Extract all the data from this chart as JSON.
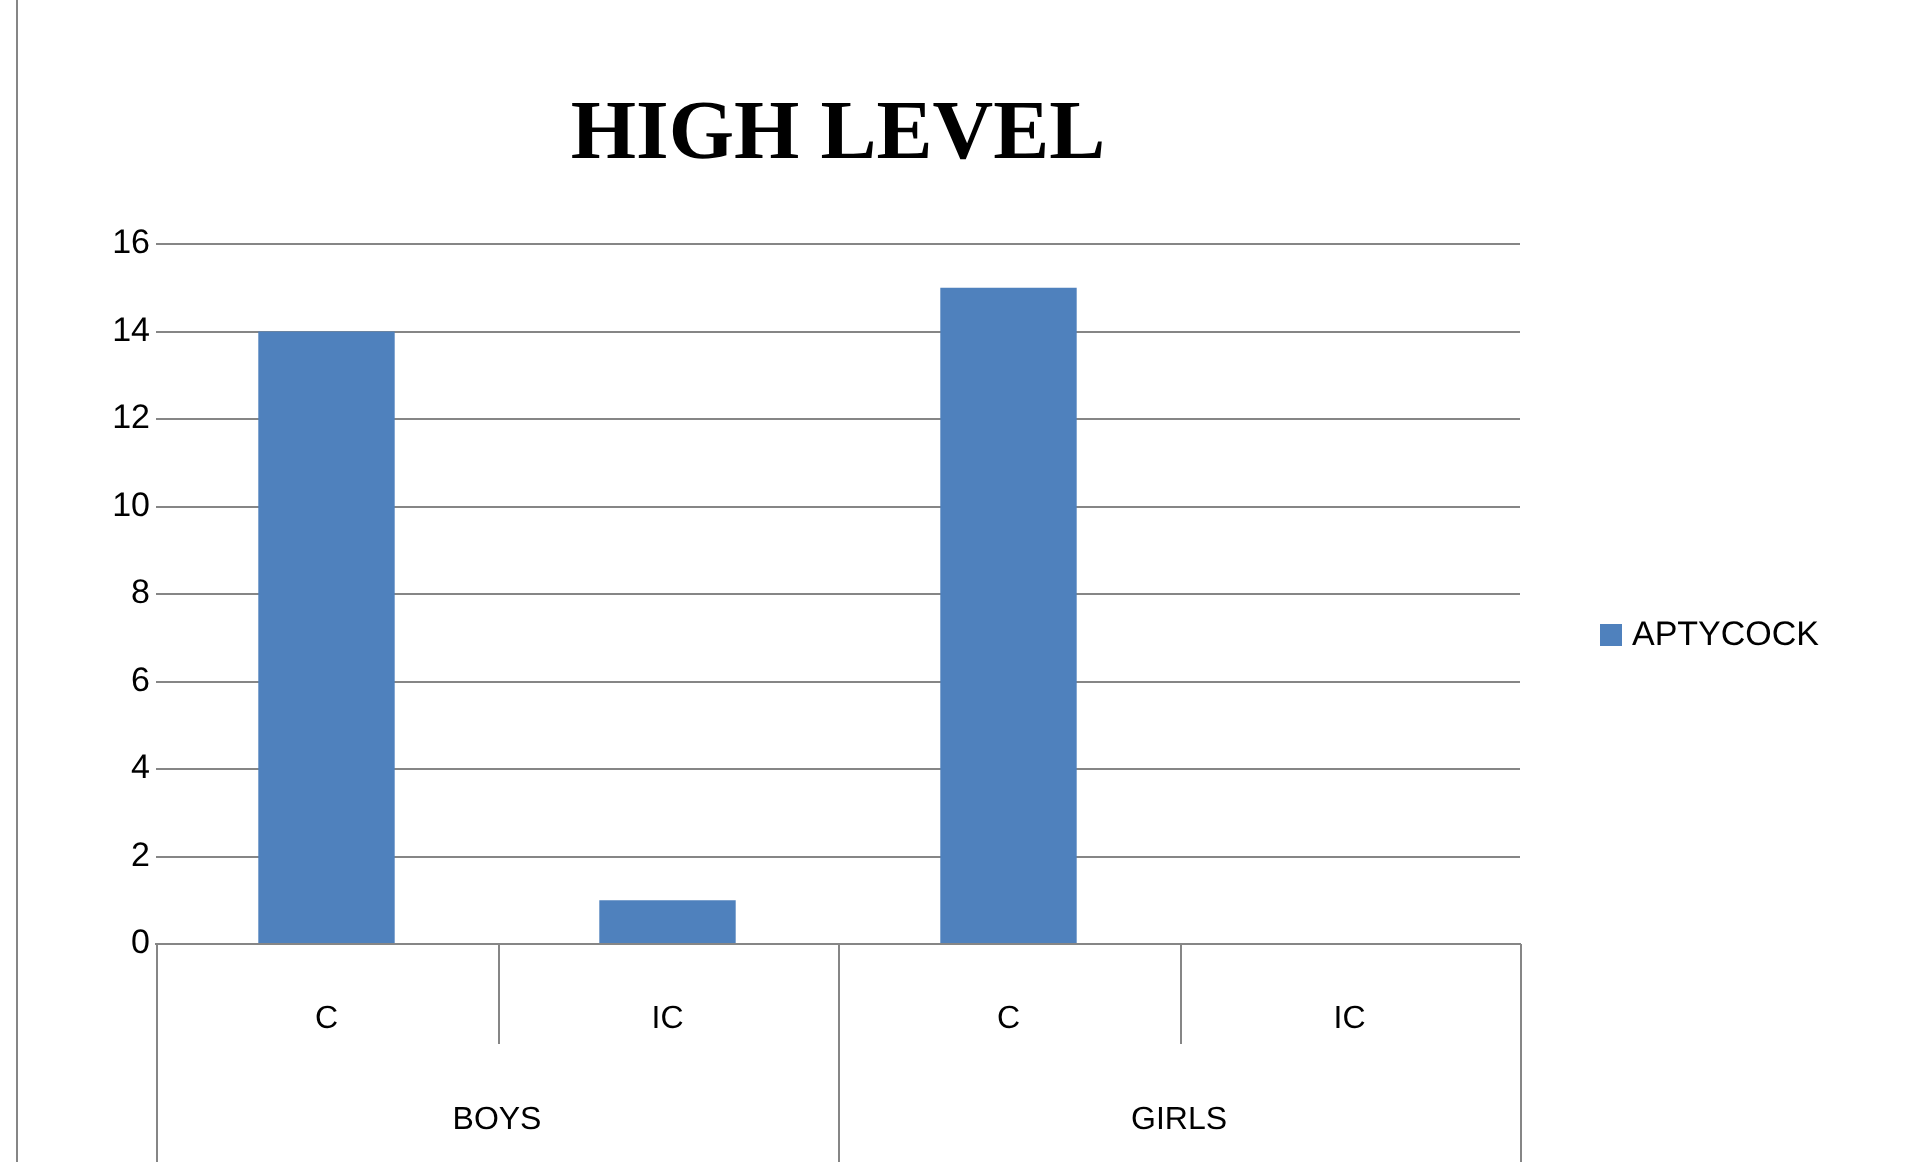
{
  "chart_data": {
    "type": "bar",
    "title": "HIGH LEVEL",
    "categories": [
      "C",
      "IC",
      "C",
      "IC"
    ],
    "series": [
      {
        "name": "APTYCOCK",
        "color": "#4f81bd",
        "values": [
          14,
          1,
          15,
          0
        ]
      }
    ],
    "annotations": [
      "BOYS",
      "GIRLS"
    ],
    "ylim": [
      0,
      16
    ],
    "yticks": [
      0,
      2,
      4,
      6,
      8,
      10,
      12,
      14,
      16
    ],
    "grid": "y",
    "legend": "right"
  }
}
